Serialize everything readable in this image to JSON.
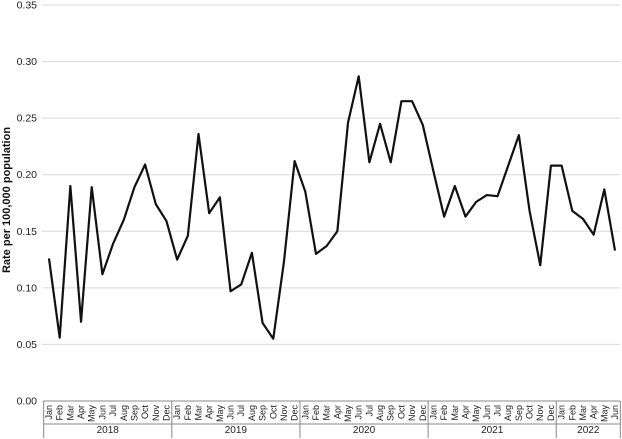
{
  "chart_data": {
    "type": "line",
    "ylabel": "Rate per 100,000 population",
    "xlabel": "",
    "ylim": [
      0,
      0.35
    ],
    "yticks": [
      "0.00",
      "0.05",
      "0.10",
      "0.15",
      "0.20",
      "0.25",
      "0.30",
      "0.35"
    ],
    "grid": "horizontal",
    "line_color": "#111111",
    "grid_color": "#d9d9d9",
    "months": [
      "Jan",
      "Feb",
      "Mar",
      "Apr",
      "May",
      "Jun",
      "Jul",
      "Aug",
      "Sep",
      "Oct",
      "Nov",
      "Dec",
      "Jan",
      "Feb",
      "Mar",
      "Apr",
      "May",
      "Jun",
      "Jul",
      "Aug",
      "Sep",
      "Oct",
      "Nov",
      "Dec",
      "Jan",
      "Feb",
      "Mar",
      "Apr",
      "May",
      "Jun",
      "Jul",
      "Aug",
      "Sep",
      "Oct",
      "Nov",
      "Dec",
      "Jan",
      "Feb",
      "Mar",
      "Apr",
      "May",
      "Jun",
      "Jul",
      "Aug",
      "Sep",
      "Oct",
      "Nov",
      "Dec",
      "Jan",
      "Feb",
      "Mar",
      "Apr",
      "May",
      "Jun"
    ],
    "years": [
      {
        "label": "2018",
        "months": 12
      },
      {
        "label": "2019",
        "months": 12
      },
      {
        "label": "2020",
        "months": 12
      },
      {
        "label": "2021",
        "months": 12
      },
      {
        "label": "2022",
        "months": 6
      }
    ],
    "values": [
      0.126,
      0.056,
      0.19,
      0.07,
      0.189,
      0.112,
      0.139,
      0.16,
      0.189,
      0.209,
      0.174,
      0.159,
      0.125,
      0.146,
      0.236,
      0.166,
      0.18,
      0.097,
      0.103,
      0.131,
      0.069,
      0.055,
      0.123,
      0.212,
      0.185,
      0.13,
      0.137,
      0.15,
      0.246,
      0.287,
      0.211,
      0.245,
      0.211,
      0.265,
      0.265,
      0.244,
      0.203,
      0.163,
      0.19,
      0.163,
      0.176,
      0.182,
      0.181,
      0.208,
      0.235,
      0.168,
      0.12,
      0.208,
      0.208,
      0.168,
      0.161,
      0.147,
      0.187,
      0.133
    ]
  }
}
